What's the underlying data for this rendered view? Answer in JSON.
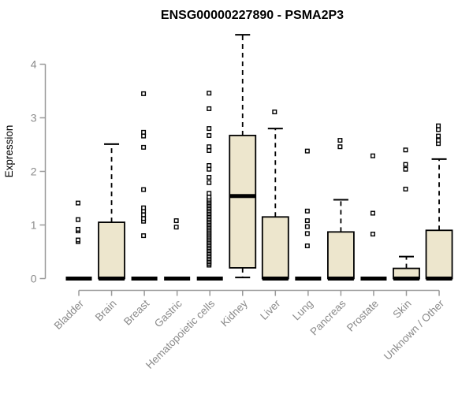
{
  "chart_data": {
    "type": "boxplot",
    "title": "ENSG00000227890 - PSMA2P3",
    "ylabel": "Expression",
    "xlabel": "",
    "ylim": [
      0,
      4.6
    ],
    "yticks": [
      0,
      1,
      2,
      3,
      4
    ],
    "grid": false,
    "legend": "none",
    "categories": [
      "Bladder",
      "Brain",
      "Breast",
      "Gastric",
      "Hematopoietic cells",
      "Kidney",
      "Liver",
      "Lung",
      "Pancreas",
      "Prostate",
      "Skin",
      "Unknown / Other"
    ],
    "series": [
      {
        "label": "Bladder",
        "q1": 0,
        "median": 0,
        "q3": 0,
        "whisker_low": 0,
        "whisker_high": 0,
        "outliers": [
          0.69,
          0.72,
          0.89,
          0.92,
          1.1,
          1.41
        ]
      },
      {
        "label": "Brain",
        "q1": 0,
        "median": 0,
        "q3": 1.05,
        "whisker_low": 0,
        "whisker_high": 2.51,
        "outliers": []
      },
      {
        "label": "Breast",
        "q1": 0,
        "median": 0,
        "q3": 0,
        "whisker_low": 0,
        "whisker_high": 0,
        "outliers": [
          0.8,
          1.07,
          1.12,
          1.19,
          1.26,
          1.32,
          1.66,
          2.45,
          2.66,
          2.73,
          3.45
        ]
      },
      {
        "label": "Gastric",
        "q1": 0,
        "median": 0,
        "q3": 0,
        "whisker_low": 0,
        "whisker_high": 0,
        "outliers": [
          0.96,
          1.08
        ]
      },
      {
        "label": "Hematopoietic cells",
        "q1": 0,
        "median": 0,
        "q3": 0,
        "whisker_low": 0,
        "whisker_high": 0,
        "outliers": [
          0.25,
          0.28,
          0.31,
          0.34,
          0.37,
          0.4,
          0.43,
          0.46,
          0.49,
          0.52,
          0.55,
          0.58,
          0.61,
          0.64,
          0.67,
          0.7,
          0.73,
          0.76,
          0.79,
          0.82,
          0.85,
          0.88,
          0.91,
          0.94,
          0.97,
          1.0,
          1.03,
          1.06,
          1.09,
          1.12,
          1.15,
          1.18,
          1.21,
          1.24,
          1.27,
          1.3,
          1.33,
          1.36,
          1.39,
          1.42,
          1.45,
          1.48,
          1.52,
          1.59,
          1.79,
          1.89,
          2.04,
          2.11,
          2.39,
          2.46,
          2.67,
          2.8,
          3.17,
          3.46
        ]
      },
      {
        "label": "Kidney",
        "q1": 0.2,
        "median": 1.54,
        "q3": 2.67,
        "whisker_low": 0.02,
        "whisker_high": 4.55,
        "outliers": []
      },
      {
        "label": "Liver",
        "q1": 0,
        "median": 0,
        "q3": 1.15,
        "whisker_low": 0,
        "whisker_high": 2.8,
        "outliers": [
          3.11
        ]
      },
      {
        "label": "Lung",
        "q1": 0,
        "median": 0,
        "q3": 0,
        "whisker_low": 0,
        "whisker_high": 0,
        "outliers": [
          0.61,
          0.84,
          0.97,
          1.08,
          1.26,
          2.38
        ]
      },
      {
        "label": "Pancreas",
        "q1": 0,
        "median": 0,
        "q3": 0.87,
        "whisker_low": 0,
        "whisker_high": 1.47,
        "outliers": [
          2.46,
          2.58
        ]
      },
      {
        "label": "Prostate",
        "q1": 0,
        "median": 0,
        "q3": 0,
        "whisker_low": 0,
        "whisker_high": 0,
        "outliers": [
          0.83,
          1.22,
          2.29
        ]
      },
      {
        "label": "Skin",
        "q1": 0,
        "median": 0,
        "q3": 0.19,
        "whisker_low": 0,
        "whisker_high": 0.41,
        "outliers": [
          1.67,
          2.04,
          2.13,
          2.4
        ]
      },
      {
        "label": "Unknown / Other",
        "q1": 0,
        "median": 0,
        "q3": 0.9,
        "whisker_low": 0,
        "whisker_high": 2.23,
        "outliers": [
          2.52,
          2.58,
          2.66,
          2.78,
          2.85
        ]
      }
    ],
    "colors": {
      "box_fill": "#ede6cd",
      "box_stroke": "#000000",
      "median": "#000000",
      "outlier_fill": "#ffffff",
      "axis": "#9a9a9a",
      "tick_text": "#8a8a8a",
      "title": "#000000",
      "background": "#ffffff"
    }
  }
}
